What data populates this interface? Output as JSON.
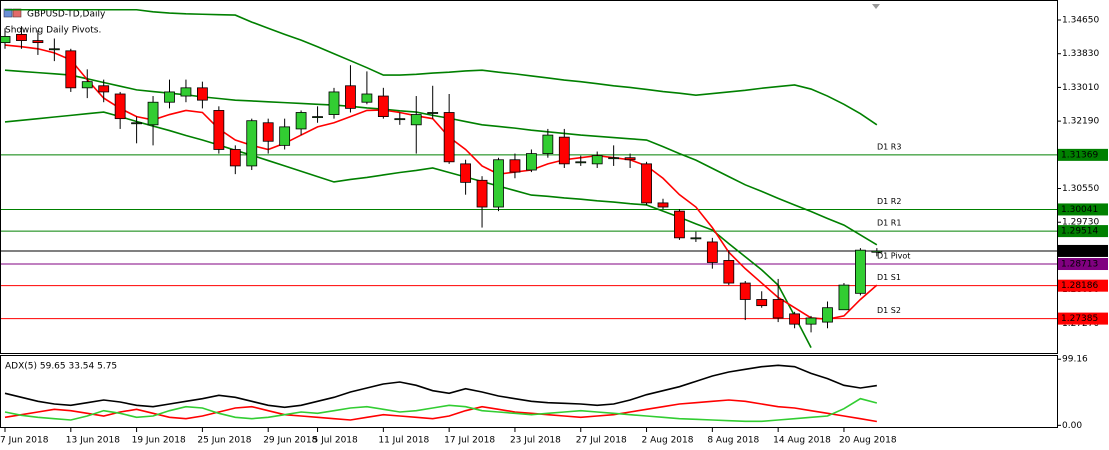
{
  "chart_data": [
    {
      "type": "candlestick",
      "title": "GBPUSD-TD,Daily",
      "subtitle": "Showing Daily Pivots.",
      "categories": [
        "7 Jun 2018",
        null,
        null,
        null,
        "13 Jun 2018",
        null,
        null,
        null,
        "19 Jun 2018",
        null,
        null,
        null,
        "25 Jun 2018",
        null,
        null,
        null,
        "29 Jun 2018",
        null,
        null,
        "5 Jul 2018",
        null,
        null,
        null,
        "11 Jul 2018",
        null,
        null,
        null,
        "17 Jul 2018",
        null,
        null,
        null,
        "23 Jul 2018",
        null,
        null,
        null,
        "27 Jul 2018",
        null,
        null,
        null,
        "2 Aug 2018",
        null,
        null,
        null,
        "8 Aug 2018",
        null,
        null,
        null,
        "14 Aug 2018",
        null,
        null,
        null,
        "20 Aug 2018",
        null,
        null
      ],
      "open": [
        1.341,
        1.343,
        1.3415,
        1.3395,
        1.339,
        1.33,
        1.3305,
        1.3285,
        1.3215,
        1.321,
        1.3265,
        1.328,
        1.33,
        1.3245,
        1.315,
        1.311,
        1.3215,
        1.316,
        1.32,
        1.323,
        1.3235,
        1.3305,
        1.3265,
        1.328,
        1.3225,
        1.321,
        1.324,
        1.324,
        1.3115,
        1.3075,
        1.301,
        1.3125,
        1.31,
        1.314,
        1.318,
        1.312,
        1.3115,
        1.313,
        1.313,
        1.3115,
        1.302,
        1.3,
        1.2935,
        1.2925,
        1.288,
        1.2825,
        1.2785,
        1.2785,
        1.275,
        1.2725,
        1.273,
        1.276,
        1.28,
        1.29
      ],
      "high": [
        1.3445,
        1.345,
        1.344,
        1.342,
        1.3395,
        1.3345,
        1.332,
        1.329,
        1.323,
        1.328,
        1.332,
        1.332,
        1.3315,
        1.3255,
        1.316,
        1.3225,
        1.3225,
        1.3225,
        1.3245,
        1.3255,
        1.33,
        1.3355,
        1.334,
        1.33,
        1.324,
        1.328,
        1.3305,
        1.3285,
        1.3125,
        1.3085,
        1.313,
        1.314,
        1.315,
        1.32,
        1.32,
        1.3135,
        1.3145,
        1.316,
        1.314,
        1.312,
        1.303,
        1.3005,
        1.295,
        1.2935,
        1.2905,
        1.283,
        1.2805,
        1.2835,
        1.2755,
        1.2745,
        1.278,
        1.2825,
        1.291,
        1.291
      ],
      "low": [
        1.3395,
        1.3395,
        1.338,
        1.3365,
        1.329,
        1.3275,
        1.3265,
        1.32,
        1.3165,
        1.316,
        1.325,
        1.3265,
        1.325,
        1.314,
        1.309,
        1.31,
        1.314,
        1.315,
        1.3185,
        1.3215,
        1.3225,
        1.324,
        1.326,
        1.3225,
        1.321,
        1.314,
        1.3225,
        1.3115,
        1.304,
        1.296,
        1.3,
        1.308,
        1.3095,
        1.313,
        1.3105,
        1.311,
        1.3105,
        1.311,
        1.3105,
        1.3015,
        1.3005,
        1.293,
        1.2925,
        1.286,
        1.282,
        1.2735,
        1.2765,
        1.273,
        1.2715,
        1.2705,
        1.2715,
        1.276,
        1.2795,
        1.289
      ],
      "close": [
        1.3425,
        1.3415,
        1.341,
        1.3395,
        1.33,
        1.3315,
        1.329,
        1.3225,
        1.3215,
        1.3265,
        1.329,
        1.33,
        1.327,
        1.315,
        1.311,
        1.322,
        1.317,
        1.3205,
        1.324,
        1.323,
        1.329,
        1.325,
        1.3285,
        1.323,
        1.3225,
        1.3235,
        1.324,
        1.312,
        1.307,
        1.301,
        1.3125,
        1.3095,
        1.314,
        1.3185,
        1.3115,
        1.312,
        1.3135,
        1.313,
        1.3125,
        1.302,
        1.301,
        1.2935,
        1.2935,
        1.2875,
        1.2825,
        1.2785,
        1.277,
        1.274,
        1.2725,
        1.274,
        1.2765,
        1.282,
        1.2905,
        1.2903
      ],
      "up_color": "#32cd32",
      "down_color": "#ff0000",
      "overlays": [
        {
          "color": "#008000",
          "values": [
            1.349,
            1.349,
            1.349,
            1.349,
            1.349,
            1.349,
            1.349,
            1.349,
            1.349,
            1.3485,
            1.3482,
            1.348,
            1.3479,
            1.3478,
            1.3477,
            1.346,
            1.3445,
            1.343,
            1.3416,
            1.34,
            1.3383,
            1.3366,
            1.3349,
            1.3331,
            1.3331,
            1.3333,
            1.3336,
            1.3338,
            1.3341,
            1.3343,
            1.3338,
            1.3334,
            1.3329,
            1.3324,
            1.3319,
            1.3315,
            1.331,
            1.3305,
            1.3301,
            1.3296,
            1.3291,
            1.3287,
            1.3282,
            1.3286,
            1.329,
            1.3294,
            1.3299,
            1.3303,
            1.3307,
            1.3297,
            1.328,
            1.326,
            1.3237,
            1.321
          ]
        },
        {
          "color": "#008000",
          "values": [
            1.3343,
            1.334,
            1.3337,
            1.3334,
            1.3331,
            1.3322,
            1.3313,
            1.3304,
            1.3295,
            1.3291,
            1.3287,
            1.3283,
            1.3278,
            1.3274,
            1.327,
            1.3268,
            1.3266,
            1.3264,
            1.3262,
            1.326,
            1.3258,
            1.3255,
            1.3251,
            1.3248,
            1.3244,
            1.3241,
            1.3233,
            1.3226,
            1.3218,
            1.321,
            1.3206,
            1.3202,
            1.3197,
            1.3193,
            1.3189,
            1.3185,
            1.3182,
            1.3179,
            1.3176,
            1.3173,
            1.3157,
            1.314,
            1.3124,
            1.3104,
            1.3084,
            1.3064,
            1.3048,
            1.3031,
            1.3015,
            1.2999,
            1.2982,
            1.2966,
            1.2942,
            1.2918
          ]
        },
        {
          "color": "#008000",
          "values": [
            1.3217,
            1.3221,
            1.3225,
            1.3229,
            1.3233,
            1.3237,
            1.3241,
            1.323,
            1.3218,
            1.3207,
            1.3196,
            1.3184,
            1.3173,
            1.3161,
            1.3148,
            1.3136,
            1.3123,
            1.311,
            1.3097,
            1.3084,
            1.3071,
            1.3077,
            1.3082,
            1.3088,
            1.3094,
            1.3099,
            1.3105,
            1.3094,
            1.3083,
            1.3072,
            1.3061,
            1.305,
            1.3039,
            1.3036,
            1.3032,
            1.3029,
            1.3025,
            1.3022,
            1.3018,
            1.3015,
            1.3,
            1.2985,
            1.2969,
            1.2954,
            1.2921,
            1.2889,
            1.2857,
            1.282,
            1.2745,
            1.2668,
            null,
            null,
            null,
            null
          ]
        },
        {
          "color": "#ff0000",
          "values": [
            1.3404,
            1.34,
            1.3395,
            1.3385,
            1.3368,
            1.332,
            1.3275,
            1.325,
            1.323,
            1.3222,
            1.3235,
            1.3245,
            1.324,
            1.32,
            1.3173,
            1.316,
            1.315,
            1.3165,
            1.3185,
            1.3205,
            1.3215,
            1.323,
            1.3245,
            1.3246,
            1.324,
            1.3232,
            1.3225,
            1.318,
            1.315,
            1.311,
            1.309,
            1.3095,
            1.31,
            1.3115,
            1.3125,
            1.313,
            1.3135,
            1.313,
            1.3125,
            1.311,
            1.308,
            1.304,
            1.301,
            1.296,
            1.29,
            1.286,
            1.2825,
            1.279,
            1.2765,
            1.274,
            1.2737,
            1.2745,
            1.2785,
            1.282
          ]
        }
      ],
      "levels": [
        {
          "label": "D1 R3",
          "value": 1.31369,
          "color": "#008000"
        },
        {
          "label": "D1 R2",
          "value": 1.30041,
          "color": "#008000"
        },
        {
          "label": "D1 R1",
          "value": 1.29514,
          "color": "#008000"
        },
        {
          "label": "D1 Pivot",
          "value": 1.28713,
          "color": "#800080"
        },
        {
          "label": "D1 S1",
          "value": 1.28186,
          "color": "#ff0000"
        },
        {
          "label": "D1 S2",
          "value": 1.27385,
          "color": "#ff0000"
        }
      ],
      "last_price": 1.29031,
      "ylim": [
        1.26548,
        1.35137
      ],
      "yticks": [
        {
          "value": 1.3465,
          "label": "1.34650"
        },
        {
          "value": 1.3383,
          "label": "1.33830"
        },
        {
          "value": 1.3301,
          "label": "1.33010"
        },
        {
          "value": 1.3219,
          "label": "1.32190"
        },
        {
          "value": 1.3055,
          "label": "1.30550"
        },
        {
          "value": 1.2973,
          "label": "1.29730"
        },
        {
          "value": 1.2809,
          "label": "1.28090"
        },
        {
          "value": 1.2727,
          "label": "1.27270"
        }
      ]
    },
    {
      "type": "line",
      "title": "ADX(5) 59.65 33.54 5.75",
      "series": [
        {
          "color": "#000000",
          "values": [
            48,
            42,
            36,
            32,
            30,
            34,
            38,
            35,
            30,
            28,
            32,
            36,
            40,
            45,
            42,
            36,
            30,
            27,
            30,
            36,
            42,
            50,
            56,
            62,
            65,
            60,
            52,
            48,
            55,
            50,
            44,
            40,
            36,
            34,
            33,
            32,
            30,
            32,
            38,
            46,
            52,
            58,
            66,
            74,
            80,
            84,
            88,
            90,
            88,
            78,
            70,
            60,
            56,
            59.65
          ]
        },
        {
          "color": "#32cd32",
          "values": [
            20,
            15,
            12,
            10,
            8,
            14,
            22,
            18,
            12,
            14,
            22,
            28,
            26,
            18,
            12,
            10,
            12,
            16,
            20,
            18,
            22,
            26,
            28,
            24,
            20,
            22,
            26,
            30,
            28,
            22,
            20,
            18,
            16,
            18,
            20,
            22,
            20,
            18,
            16,
            14,
            12,
            10,
            9,
            8,
            7,
            6,
            6,
            8,
            10,
            12,
            14,
            25,
            40,
            33.54
          ]
        },
        {
          "color": "#ff0000",
          "values": [
            12,
            16,
            20,
            24,
            22,
            18,
            14,
            20,
            24,
            18,
            12,
            10,
            14,
            20,
            26,
            28,
            22,
            16,
            14,
            12,
            10,
            8,
            12,
            16,
            14,
            12,
            10,
            14,
            22,
            28,
            24,
            20,
            18,
            16,
            14,
            12,
            14,
            16,
            20,
            24,
            28,
            32,
            34,
            36,
            38,
            36,
            32,
            28,
            26,
            22,
            18,
            14,
            10,
            5.75
          ]
        }
      ],
      "ylim": [
        -4,
        104
      ],
      "yticks": [
        99.16,
        {
          "value": 0,
          "label": "0.00"
        }
      ]
    }
  ]
}
